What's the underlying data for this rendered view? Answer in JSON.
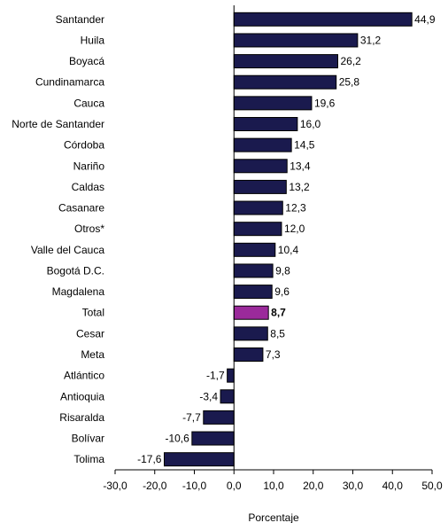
{
  "chart_data": {
    "type": "bar",
    "orientation": "horizontal",
    "categories": [
      "Santander",
      "Huila",
      "Boyacá",
      "Cundinamarca",
      "Cauca",
      "Norte de Santander",
      "Córdoba",
      "Nariño",
      "Caldas",
      "Casanare",
      "Otros*",
      "Valle del Cauca",
      "Bogotá D.C.",
      "Magdalena",
      "Total",
      "Cesar",
      "Meta",
      "Atlántico",
      "Antioquia",
      "Risaralda",
      "Bolívar",
      "Tolima"
    ],
    "values": [
      44.9,
      31.2,
      26.2,
      25.8,
      19.6,
      16.0,
      14.5,
      13.4,
      13.2,
      12.3,
      12.0,
      10.4,
      9.8,
      9.6,
      8.7,
      8.5,
      7.3,
      -1.7,
      -3.4,
      -7.7,
      -10.6,
      -17.6
    ],
    "value_labels": [
      "44,9",
      "31,2",
      "26,2",
      "25,8",
      "19,6",
      "16,0",
      "14,5",
      "13,4",
      "13,2",
      "12,3",
      "12,0",
      "10,4",
      "9,8",
      "9,6",
      "8,7",
      "8,5",
      "7,3",
      "-1,7",
      "-3,4",
      "-7,7",
      "-10,6",
      "-17,6"
    ],
    "highlight": "Total",
    "xlabel": "Porcentaje",
    "xlim": [
      -30,
      50
    ],
    "xticks": [
      -30,
      -20,
      -10,
      0,
      10,
      20,
      30,
      40,
      50
    ],
    "xtick_labels": [
      "-30,0",
      "-20,0",
      "-10,0",
      "0,0",
      "10,0",
      "20,0",
      "30,0",
      "40,0",
      "50,0"
    ],
    "grid": false,
    "colors": {
      "bar": "#1a1a4e",
      "highlight": "#9b2a9b",
      "outline": "#000000"
    }
  }
}
